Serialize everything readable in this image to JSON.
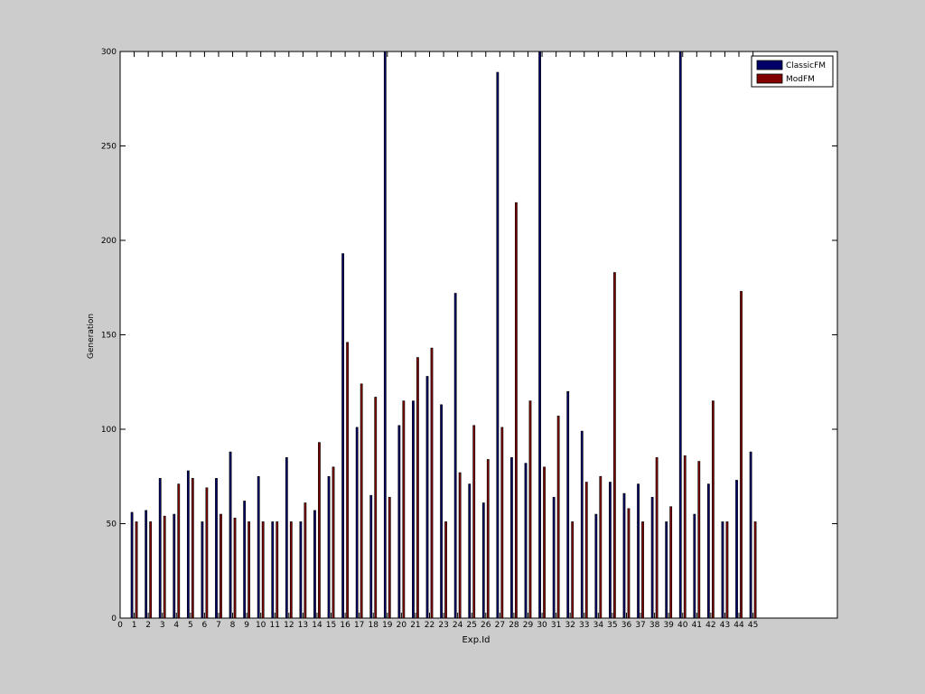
{
  "chart_data": {
    "type": "bar",
    "title": "",
    "xlabel": "Exp.Id",
    "ylabel": "Generation",
    "xlim": [
      0,
      51
    ],
    "ylim": [
      0,
      300
    ],
    "x_ticks": [
      0,
      1,
      2,
      3,
      4,
      5,
      6,
      7,
      8,
      9,
      10,
      11,
      12,
      13,
      14,
      15,
      16,
      17,
      18,
      19,
      20,
      21,
      22,
      23,
      24,
      25,
      26,
      27,
      28,
      29,
      30,
      31,
      32,
      33,
      34,
      35,
      36,
      37,
      38,
      39,
      40,
      41,
      42,
      43,
      44,
      45
    ],
    "y_ticks": [
      0,
      50,
      100,
      150,
      200,
      250,
      300
    ],
    "categories": [
      1,
      2,
      3,
      4,
      5,
      6,
      7,
      8,
      9,
      10,
      11,
      12,
      13,
      14,
      15,
      16,
      17,
      18,
      19,
      20,
      21,
      22,
      23,
      24,
      25,
      26,
      27,
      28,
      29,
      30,
      31,
      32,
      33,
      34,
      35,
      36,
      37,
      38,
      39,
      40,
      41,
      42,
      43,
      44,
      45
    ],
    "series": [
      {
        "name": "ClassicFM",
        "color": "#000066",
        "values": [
          56,
          57,
          74,
          55,
          78,
          51,
          74,
          88,
          62,
          75,
          51,
          85,
          51,
          57,
          75,
          193,
          101,
          65,
          300,
          102,
          115,
          128,
          113,
          172,
          71,
          61,
          289,
          85,
          82,
          300,
          64,
          120,
          99,
          55,
          72,
          66,
          71,
          64,
          51,
          300,
          55,
          71,
          51,
          73,
          88
        ]
      },
      {
        "name": "ModFM",
        "color": "#800000",
        "values": [
          51,
          51,
          54,
          71,
          74,
          69,
          55,
          53,
          51,
          51,
          51,
          51,
          61,
          93,
          80,
          146,
          124,
          117,
          64,
          115,
          138,
          143,
          51,
          77,
          102,
          84,
          101,
          220,
          115,
          80,
          107,
          51,
          72,
          75,
          183,
          58,
          51,
          85,
          59,
          86,
          83,
          115,
          51,
          173,
          51
        ]
      }
    ],
    "legend": {
      "position": "top-right"
    },
    "grid": false
  }
}
